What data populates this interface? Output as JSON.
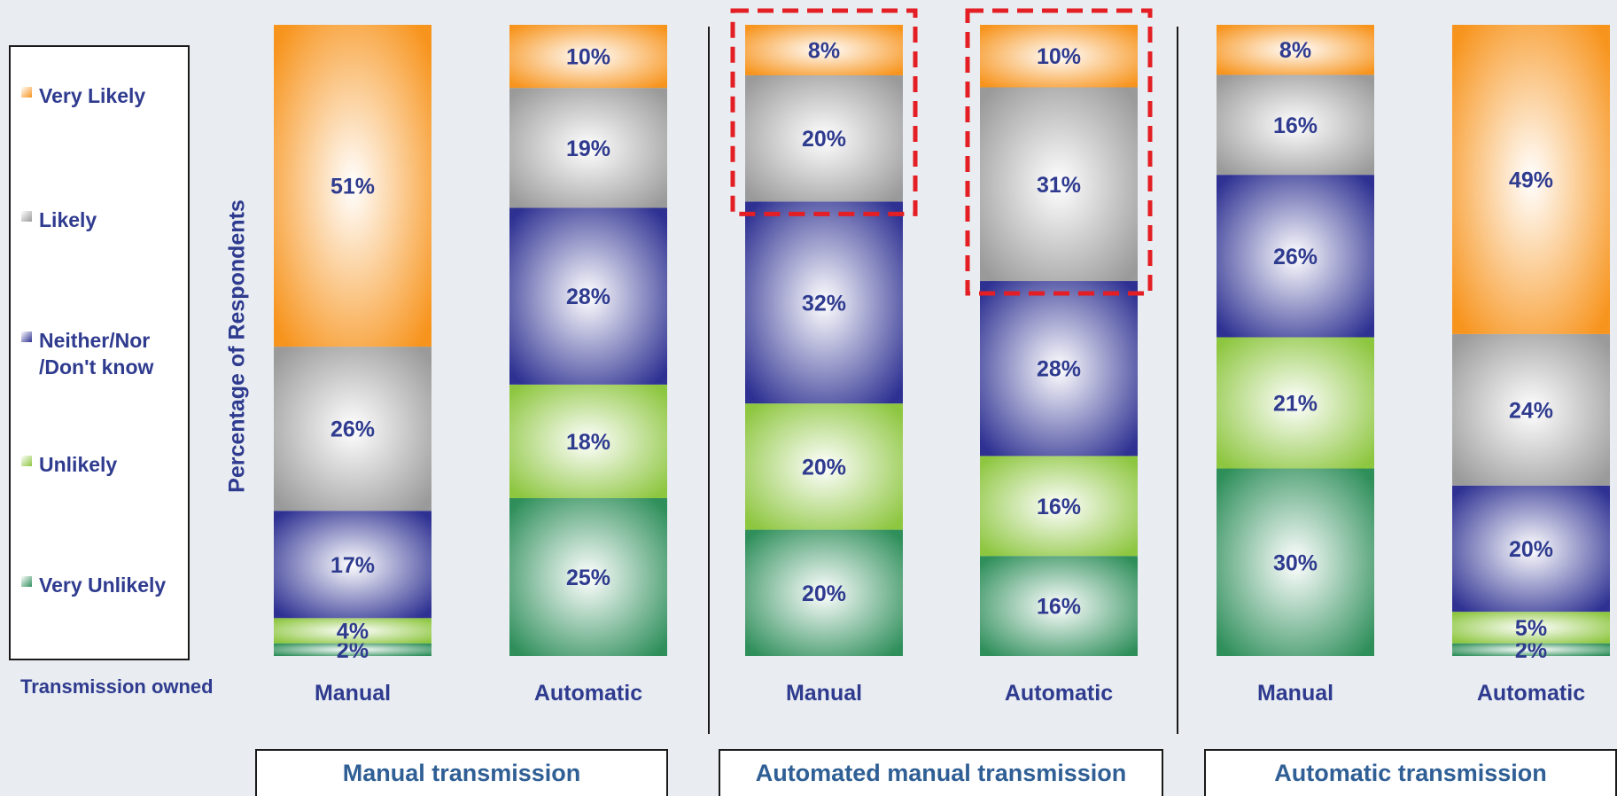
{
  "colors": {
    "very_likely": "#f7941d",
    "likely": "#9a9a9a",
    "neither": "#2e3192",
    "unlikely": "#8dc63f",
    "very_unlikely": "#2f8f5b",
    "highlight": "#e31e24"
  },
  "chart_data": {
    "type": "bar",
    "stacked": true,
    "percent": true,
    "ylabel": "Percentage of Respondents",
    "xlabel": "Transmission owned",
    "ylim": [
      0,
      100
    ],
    "legend_placement": "left",
    "legend_order": [
      "Very Likely",
      "Likely",
      "Neither/Nor\n/Don't know",
      "Unlikely",
      "Very Unlikely"
    ],
    "groups": [
      {
        "name": "Manual transmission",
        "bars": [
          {
            "category": "Manual",
            "values": {
              "Very Unlikely": 2,
              "Unlikely": 4,
              "Neither": 17,
              "Likely": 26,
              "Very Likely": 51
            }
          },
          {
            "category": "Automatic",
            "values": {
              "Very Unlikely": 25,
              "Unlikely": 18,
              "Neither": 28,
              "Likely": 19,
              "Very Likely": 10
            }
          }
        ]
      },
      {
        "name": "Automated manual transmission",
        "bars": [
          {
            "category": "Manual",
            "values": {
              "Very Unlikely": 20,
              "Unlikely": 20,
              "Neither": 32,
              "Likely": 20,
              "Very Likely": 8
            }
          },
          {
            "category": "Automatic",
            "values": {
              "Very Unlikely": 16,
              "Unlikely": 16,
              "Neither": 28,
              "Likely": 31,
              "Very Likely": 10
            }
          }
        ]
      },
      {
        "name": "Automatic transmission",
        "bars": [
          {
            "category": "Manual",
            "values": {
              "Very Unlikely": 30,
              "Unlikely": 21,
              "Neither": 26,
              "Likely": 16,
              "Very Likely": 8
            }
          },
          {
            "category": "Automatic",
            "values": {
              "Very Unlikely": 2,
              "Unlikely": 5,
              "Neither": 20,
              "Likely": 24,
              "Very Likely": 49
            }
          }
        ]
      }
    ],
    "highlighted": [
      {
        "group": 1,
        "bar": 0,
        "segments": [
          "Very Likely",
          "Likely"
        ]
      },
      {
        "group": 1,
        "bar": 1,
        "segments": [
          "Very Likely",
          "Likely"
        ]
      }
    ]
  }
}
